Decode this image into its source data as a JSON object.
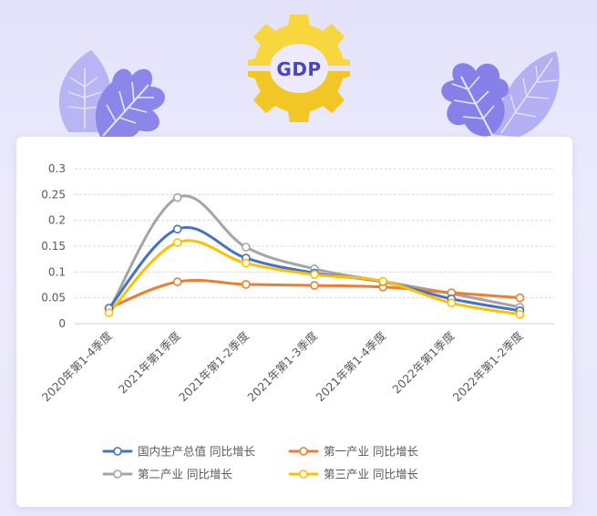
{
  "badge": {
    "label": "GDP"
  },
  "colors": {
    "gear": "#f7d63e",
    "leaf_left_light": "#a9a7f2",
    "leaf_left_dark": "#8b87ea",
    "leaf_right_light": "#aaa8f2",
    "leaf_right_dark": "#8581e8"
  },
  "chart_data": {
    "type": "line",
    "smooth": true,
    "categories": [
      "2020年第1-4季度",
      "2021年第1季度",
      "2021年第1-2季度",
      "2021年第1-3季度",
      "2021年第1-4季度",
      "2022年第1季度",
      "2022年第1-2季度"
    ],
    "ylim": [
      0,
      0.3
    ],
    "yticks": [
      "0",
      "0.05",
      "0.1",
      "0.15",
      "0.2",
      "0.25",
      "0.3"
    ],
    "grid": true,
    "legend_position": "bottom",
    "series": [
      {
        "name": "国内生产总值 同比增长",
        "color": "#4472c4",
        "values": [
          0.03,
          0.183,
          0.127,
          0.098,
          0.081,
          0.048,
          0.025
        ]
      },
      {
        "name": "第一产业 同比增长",
        "color": "#ed7d31",
        "values": [
          0.03,
          0.081,
          0.076,
          0.074,
          0.071,
          0.06,
          0.05
        ]
      },
      {
        "name": "第二产业 同比增长",
        "color": "#a5a5a5",
        "values": [
          0.026,
          0.244,
          0.148,
          0.106,
          0.082,
          0.058,
          0.032
        ]
      },
      {
        "name": "第三产业 同比增长",
        "color": "#ffc000",
        "values": [
          0.021,
          0.157,
          0.117,
          0.095,
          0.082,
          0.04,
          0.018
        ]
      }
    ]
  }
}
